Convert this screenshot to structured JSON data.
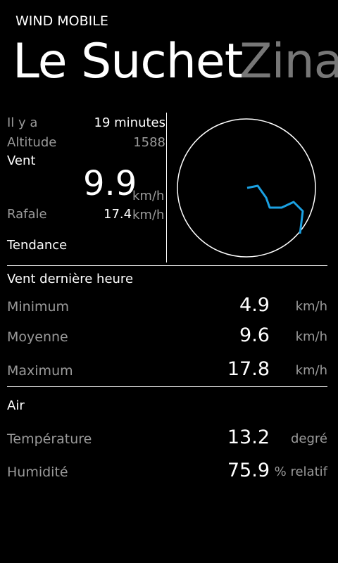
{
  "app": {
    "title": "WIND MOBILE"
  },
  "pivot": {
    "active": "Le Suchet",
    "next": "Zina"
  },
  "summary": {
    "ago_label": "Il y a",
    "ago_value": "19 minutes",
    "altitude_label": "Altitude",
    "altitude_value": "1588",
    "wind_label": "Vent",
    "wind_value": "9.9",
    "wind_unit": "km/h",
    "gust_label": "Rafale",
    "gust_value": "17.4",
    "gust_unit": "km/h",
    "trend_label": "Tendance"
  },
  "compass": {
    "trace_color": "#1ba1e2",
    "circle_color": "#ffffff"
  },
  "last_hour": {
    "title": "Vent dernière heure",
    "rows": [
      {
        "label": "Minimum",
        "value": "4.9",
        "unit": "km/h"
      },
      {
        "label": "Moyenne",
        "value": "9.6",
        "unit": "km/h"
      },
      {
        "label": "Maximum",
        "value": "17.8",
        "unit": "km/h"
      }
    ]
  },
  "air": {
    "title": "Air",
    "rows": [
      {
        "label": "Température",
        "value": "13.2",
        "unit": "degré"
      },
      {
        "label": "Humidité",
        "value": "75.9",
        "unit": "% relatif"
      }
    ]
  }
}
